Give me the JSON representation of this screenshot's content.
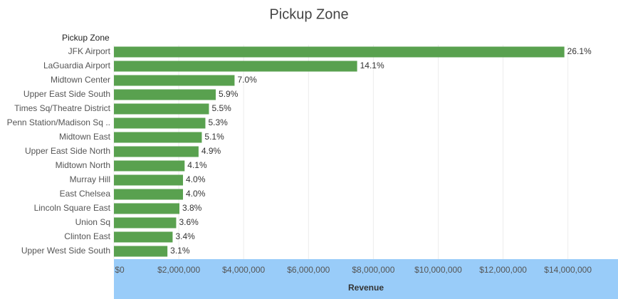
{
  "chart_data": {
    "type": "bar",
    "orientation": "horizontal",
    "title": "Pickup Zone",
    "y_label": "Pickup Zone",
    "x_label": "Revenue",
    "categories": [
      "JFK Airport",
      "LaGuardia Airport",
      "Midtown Center",
      "Upper East Side South",
      "Times Sq/Theatre District",
      "Penn Station/Madison Sq ..",
      "Midtown East",
      "Upper East Side North",
      "Midtown North",
      "Murray Hill",
      "East Chelsea",
      "Lincoln Square East",
      "Union Sq",
      "Clinton East",
      "Upper West Side South"
    ],
    "values": [
      13890000,
      7500000,
      3720000,
      3140000,
      2930000,
      2820000,
      2710000,
      2610000,
      2180000,
      2130000,
      2130000,
      2020000,
      1920000,
      1810000,
      1650000
    ],
    "share": {
      "values": [
        26.1,
        14.1,
        7.0,
        5.9,
        5.5,
        5.3,
        5.1,
        4.9,
        4.1,
        4.0,
        4.0,
        3.8,
        3.6,
        3.4,
        3.1
      ],
      "value_labels": [
        "26.1%",
        "14.1%",
        "7.0%",
        "5.9%",
        "5.5%",
        "5.3%",
        "5.1%",
        "4.9%",
        "4.1%",
        "4.0%",
        "4.0%",
        "3.8%",
        "3.6%",
        "3.4%",
        "3.1%"
      ]
    },
    "color": "#59a14f",
    "xlim": [
      0,
      15500000
    ],
    "xticks": [
      {
        "value": 0,
        "label": "$0"
      },
      {
        "value": 2000000,
        "label": "$2,000,000"
      },
      {
        "value": 4000000,
        "label": "$4,000,000"
      },
      {
        "value": 6000000,
        "label": "$6,000,000"
      },
      {
        "value": 8000000,
        "label": "$8,000,000"
      },
      {
        "value": 10000000,
        "label": "$10,000,000"
      },
      {
        "value": 12000000,
        "label": "$12,000,000"
      },
      {
        "value": 14000000,
        "label": "$14,000,000"
      }
    ],
    "grid": true
  }
}
